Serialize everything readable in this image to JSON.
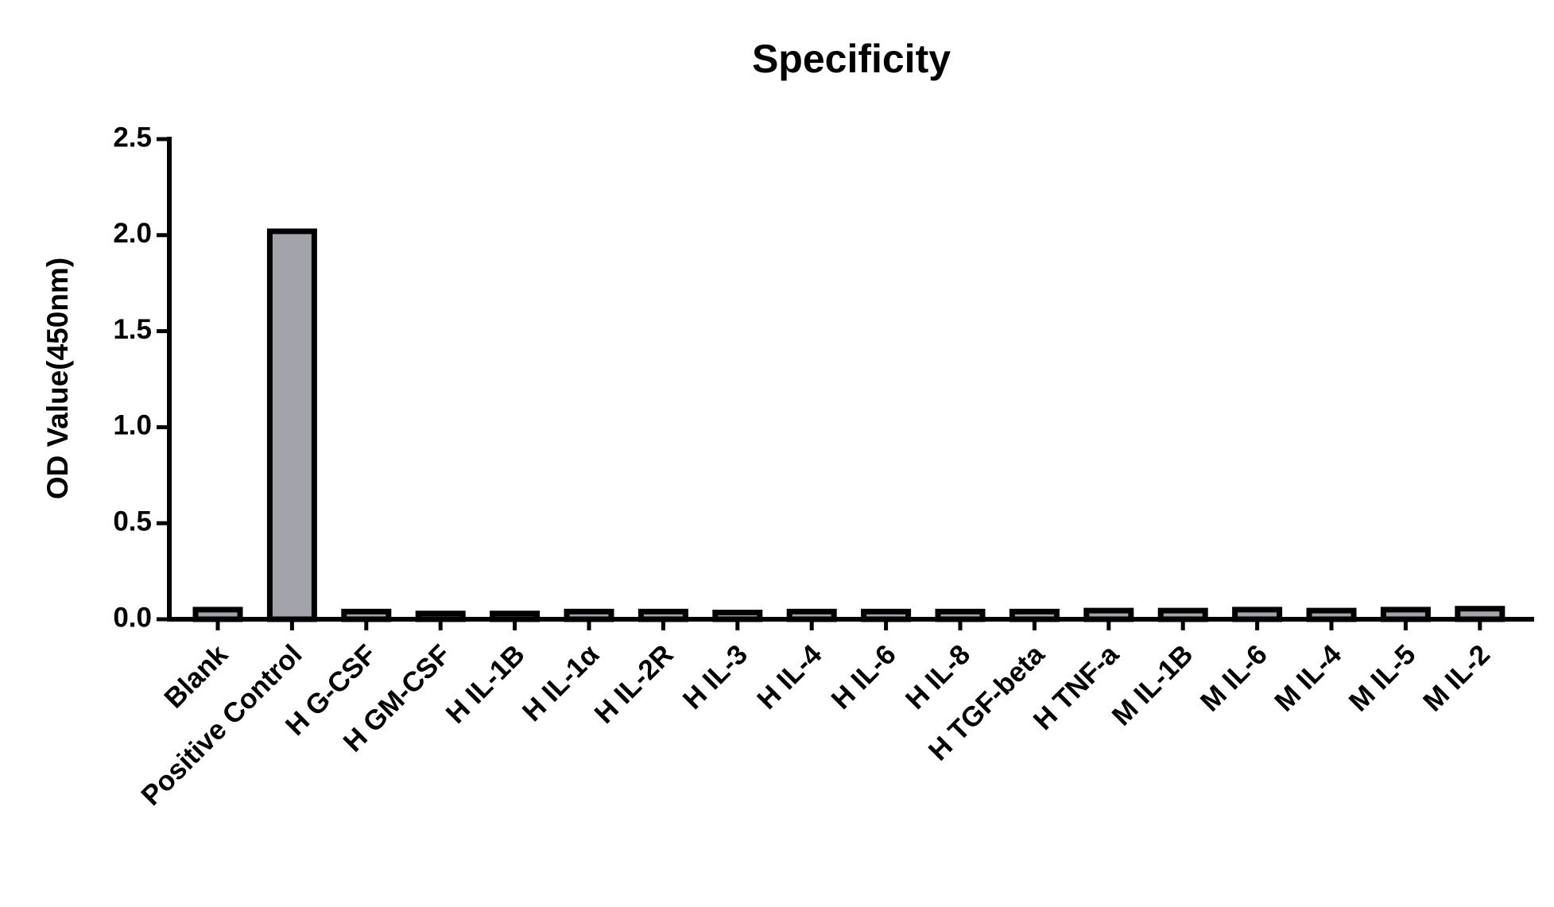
{
  "chart_data": {
    "type": "bar",
    "title": "Specificity",
    "y_label": "OD Value(450nm)",
    "categories": [
      "Blank",
      "Positive Control",
      "H G-CSF",
      "H GM-CSF",
      "H IL-1B",
      "H IL-1α",
      "H IL-2R",
      "H IL-3",
      "H IL-4",
      "H IL-6",
      "H IL-8",
      "H TGF-beta",
      "H TNF-a",
      "M IL-1B",
      "M IL-6",
      "M IL-4",
      "M IL-5",
      "M IL-2"
    ],
    "values": [
      0.05,
      2.02,
      0.04,
      0.03,
      0.03,
      0.04,
      0.04,
      0.035,
      0.04,
      0.04,
      0.04,
      0.04,
      0.045,
      0.045,
      0.05,
      0.045,
      0.05,
      0.055
    ],
    "color": "#a3a3ab",
    "edge_color": "#000000",
    "ylim": [
      0,
      2.5
    ],
    "yticks": [
      {
        "value": 0,
        "label": "0.0"
      },
      0.5,
      {
        "value": 1,
        "label": "1.0"
      },
      1.5,
      {
        "value": 2,
        "label": "2.0"
      },
      2.5
    ]
  }
}
